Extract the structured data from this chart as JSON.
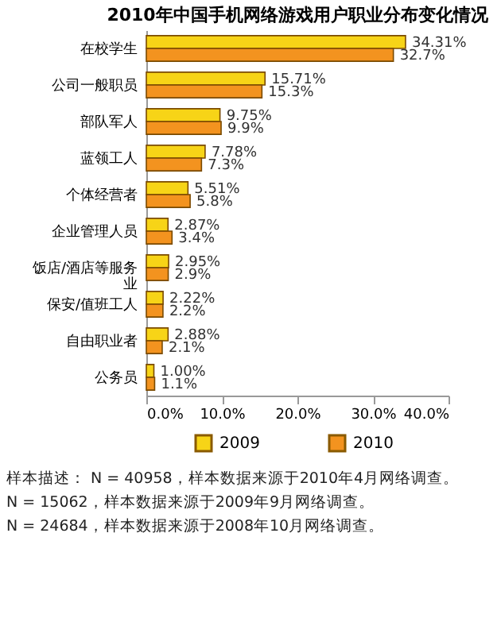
{
  "chart_data": {
    "type": "bar",
    "orientation": "horizontal",
    "title": "2010年中国手机网络游戏用户职业分布变化情况",
    "categories": [
      "在校学生",
      "公司一般职员",
      "部队军人",
      "蓝领工人",
      "个体经营者",
      "企业管理人员",
      "饭店/酒店等服务业",
      "保安/值班工人",
      "自由职业者",
      "公务员"
    ],
    "series": [
      {
        "name": "2009",
        "color": "#f7d417",
        "values": [
          34.31,
          15.71,
          9.75,
          7.78,
          5.51,
          2.87,
          2.95,
          2.22,
          2.88,
          1.0
        ],
        "value_labels": [
          "34.31%",
          "15.71%",
          "9.75%",
          "7.78%",
          "5.51%",
          "2.87%",
          "2.95%",
          "2.22%",
          "2.88%",
          "1.00%"
        ]
      },
      {
        "name": "2010",
        "color": "#f3931f",
        "values": [
          32.7,
          15.3,
          9.9,
          7.3,
          5.8,
          3.4,
          2.9,
          2.2,
          2.1,
          1.1
        ],
        "value_labels": [
          "32.7%",
          "15.3%",
          "9.9%",
          "7.3%",
          "5.8%",
          "3.4%",
          "2.9%",
          "2.2%",
          "2.1%",
          "1.1%"
        ]
      }
    ],
    "xlim": [
      0,
      40
    ],
    "xticks": [
      {
        "value": 0,
        "label": "0.0%"
      },
      {
        "value": 10,
        "label": "10.0%"
      },
      {
        "value": 20,
        "label": "20.0%"
      },
      {
        "value": 30,
        "label": "30.0%"
      },
      {
        "value": 40,
        "label": "40.0%"
      }
    ],
    "grid": false,
    "legend": "bottom",
    "annotations": [
      "样本描述： N = 40958，样本数据来源于2010年4月网络调查。",
      "N = 15062，样本数据来源于2009年9月网络调查。",
      "N = 24684，样本数据来源于2008年10月网络调查。"
    ]
  }
}
